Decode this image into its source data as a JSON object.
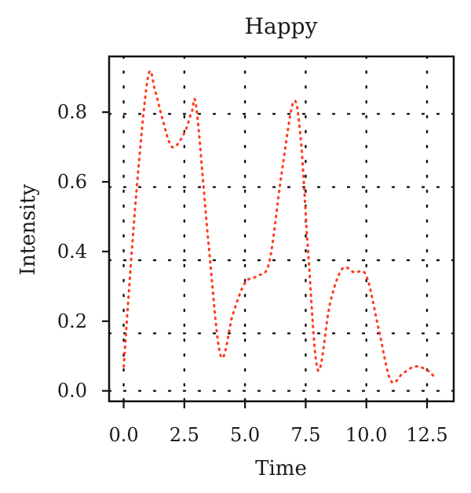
{
  "chart_data": {
    "type": "line",
    "title": "Happy",
    "xlabel": "Time",
    "ylabel": "Intensity",
    "xlim": [
      -0.6,
      13.6
    ],
    "ylim": [
      -0.03,
      0.96
    ],
    "x_ticks": [
      0.0,
      2.5,
      5.0,
      7.5,
      10.0,
      12.5
    ],
    "x_tick_labels": [
      "0.0",
      "2.5",
      "5.0",
      "7.5",
      "10.0",
      "12.5"
    ],
    "y_ticks": [
      0.0,
      0.2,
      0.4,
      0.6,
      0.8
    ],
    "y_tick_labels": [
      "0.0",
      "0.2",
      "0.4",
      "0.6",
      "0.8"
    ],
    "grid": true,
    "grid_style": "dotted",
    "grid_x": [
      0,
      2.5,
      5.0,
      7.5,
      10.0,
      12.5
    ],
    "grid_y": [
      0.0,
      0.165,
      0.375,
      0.585,
      0.795
    ],
    "legend": "none",
    "series": [
      {
        "line_style": "dotted",
        "color": "#ff3b1f",
        "x": [
          0.0,
          0.5,
          1.0,
          1.3,
          1.6,
          2.0,
          2.5,
          2.8,
          3.0,
          3.5,
          4.0,
          4.5,
          5.0,
          5.5,
          6.0,
          6.5,
          7.0,
          7.3,
          7.6,
          8.0,
          8.5,
          9.0,
          9.5,
          10.0,
          10.5,
          11.0,
          11.5,
          12.0,
          12.5,
          12.8
        ],
        "y": [
          0.07,
          0.55,
          0.9,
          0.86,
          0.78,
          0.7,
          0.74,
          0.8,
          0.81,
          0.42,
          0.1,
          0.22,
          0.31,
          0.33,
          0.37,
          0.62,
          0.83,
          0.72,
          0.4,
          0.06,
          0.25,
          0.35,
          0.34,
          0.33,
          0.18,
          0.03,
          0.05,
          0.07,
          0.06,
          0.04
        ]
      }
    ]
  }
}
